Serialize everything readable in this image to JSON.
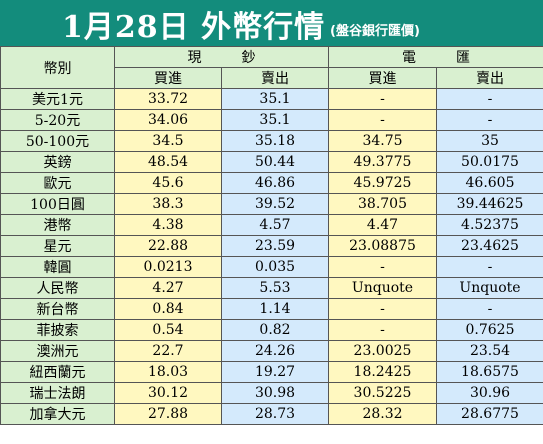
{
  "title": "1月28日 外幣行情",
  "source": "(盤谷銀行匯價)",
  "header": {
    "currency_col": "幣別",
    "cash_group": "現鈔",
    "tt_group": "電匯",
    "buy": "買進",
    "sell": "賣出"
  },
  "colors": {
    "title_bg": "#138c7c",
    "label_bg": "#d9f0d0",
    "buy_bg": "#fff8c0",
    "sell_bg": "#d4eafc"
  },
  "rows": [
    {
      "currency": "美元1元",
      "cash_buy": "33.72",
      "cash_sell": "35.1",
      "tt_buy": "-",
      "tt_sell": "-"
    },
    {
      "currency": "5-20元",
      "cash_buy": "34.06",
      "cash_sell": "35.1",
      "tt_buy": "-",
      "tt_sell": "-"
    },
    {
      "currency": "50-100元",
      "cash_buy": "34.5",
      "cash_sell": "35.18",
      "tt_buy": "34.75",
      "tt_sell": "35"
    },
    {
      "currency": "英鎊",
      "cash_buy": "48.54",
      "cash_sell": "50.44",
      "tt_buy": "49.3775",
      "tt_sell": "50.0175"
    },
    {
      "currency": "歐元",
      "cash_buy": "45.6",
      "cash_sell": "46.86",
      "tt_buy": "45.9725",
      "tt_sell": "46.605"
    },
    {
      "currency": "100日圓",
      "cash_buy": "38.3",
      "cash_sell": "39.52",
      "tt_buy": "38.705",
      "tt_sell": "39.44625"
    },
    {
      "currency": "港幣",
      "cash_buy": "4.38",
      "cash_sell": "4.57",
      "tt_buy": "4.47",
      "tt_sell": "4.52375"
    },
    {
      "currency": "星元",
      "cash_buy": "22.88",
      "cash_sell": "23.59",
      "tt_buy": "23.08875",
      "tt_sell": "23.4625"
    },
    {
      "currency": "韓圓",
      "cash_buy": "0.0213",
      "cash_sell": "0.035",
      "tt_buy": "-",
      "tt_sell": "-"
    },
    {
      "currency": "人民幣",
      "cash_buy": "4.27",
      "cash_sell": "5.53",
      "tt_buy": "Unquote",
      "tt_sell": "Unquote"
    },
    {
      "currency": "新台幣",
      "cash_buy": "0.84",
      "cash_sell": "1.14",
      "tt_buy": "-",
      "tt_sell": "-"
    },
    {
      "currency": "菲披索",
      "cash_buy": "0.54",
      "cash_sell": "0.82",
      "tt_buy": "-",
      "tt_sell": "0.7625"
    },
    {
      "currency": "澳洲元",
      "cash_buy": "22.7",
      "cash_sell": "24.26",
      "tt_buy": "23.0025",
      "tt_sell": "23.54"
    },
    {
      "currency": "紐西蘭元",
      "cash_buy": "18.03",
      "cash_sell": "19.27",
      "tt_buy": "18.2425",
      "tt_sell": "18.6575"
    },
    {
      "currency": "瑞士法朗",
      "cash_buy": "30.12",
      "cash_sell": "30.98",
      "tt_buy": "30.5225",
      "tt_sell": "30.96"
    },
    {
      "currency": "加拿大元",
      "cash_buy": "27.88",
      "cash_sell": "28.73",
      "tt_buy": "28.32",
      "tt_sell": "28.6775"
    }
  ]
}
